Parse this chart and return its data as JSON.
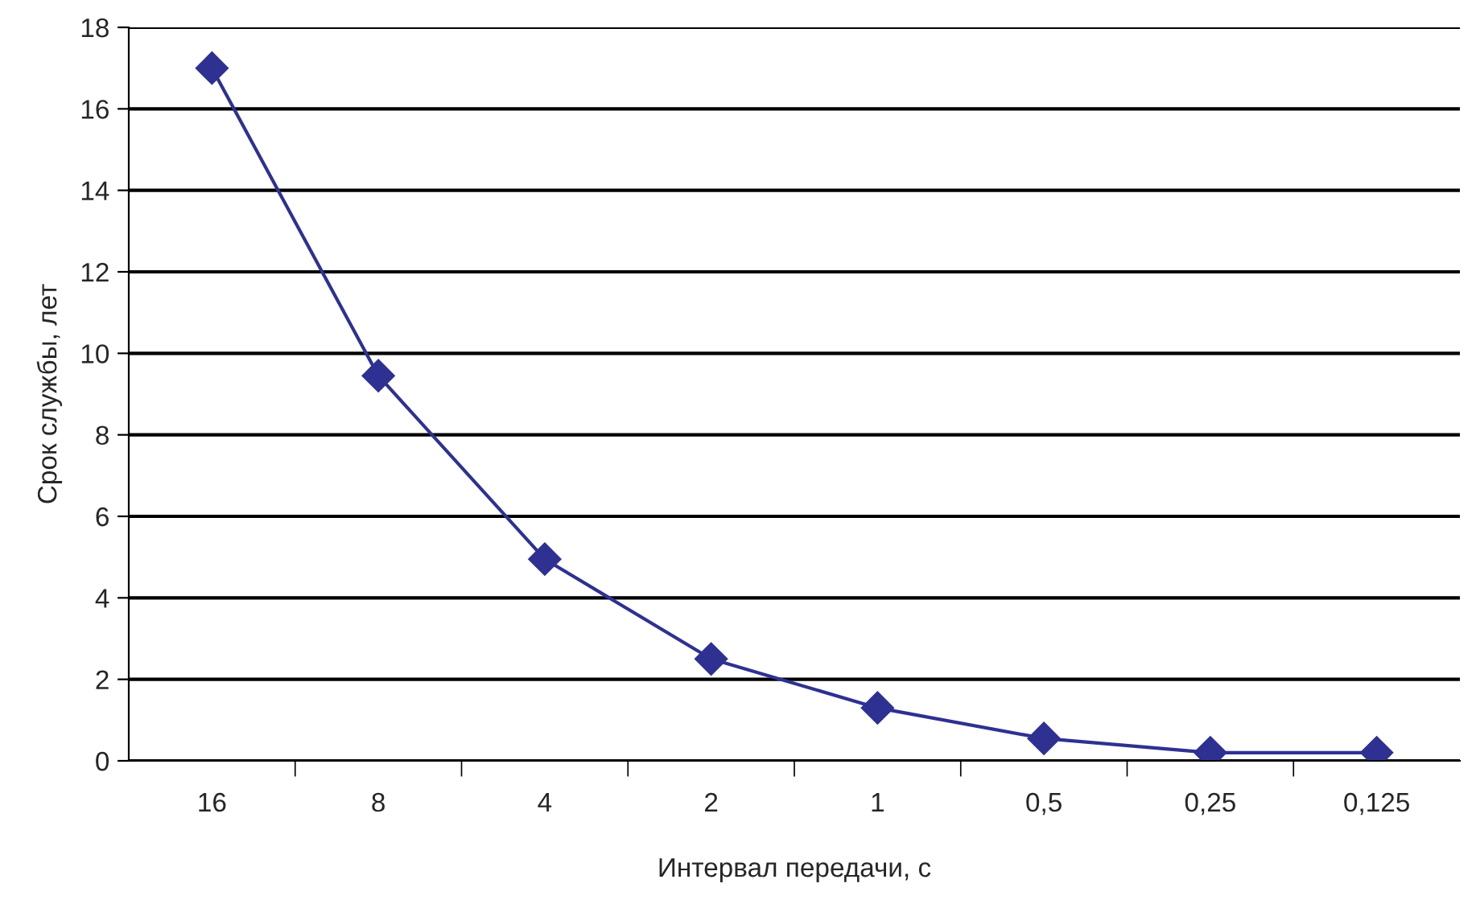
{
  "chart_data": {
    "type": "line",
    "xlabel": "Интервал передачи, с",
    "ylabel": "Срок службы, лет",
    "categories": [
      "16",
      "8",
      "4",
      "2",
      "1",
      "0,5",
      "0,25",
      "0,125"
    ],
    "series": [
      {
        "color": "#2e3192",
        "values": [
          17.0,
          9.45,
          4.95,
          2.5,
          1.3,
          0.55,
          0.2,
          0.2
        ]
      }
    ],
    "ylim": [
      0,
      18
    ],
    "yticks": [
      0,
      2,
      4,
      6,
      8,
      10,
      12,
      14,
      16,
      18
    ],
    "grid": "y",
    "marker": "diamond",
    "line_style": "solid"
  }
}
